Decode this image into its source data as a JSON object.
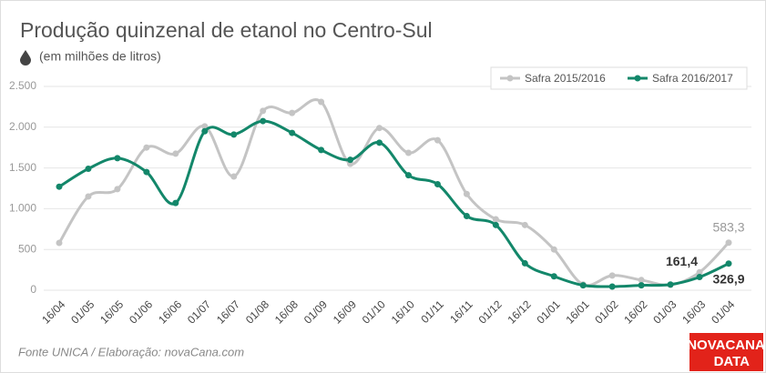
{
  "chart_data": {
    "type": "line",
    "title": "Produção quinzenal de etanol no Centro-Sul",
    "subtitle": "(em milhões de litros)",
    "source": "Fonte UNICA / Elaboração: novaCana.com",
    "logo": [
      "NOVACANA",
      "DATA"
    ],
    "categories": [
      "16/04",
      "01/05",
      "16/05",
      "01/06",
      "16/06",
      "01/07",
      "16/07",
      "01/08",
      "16/08",
      "01/09",
      "16/09",
      "01/10",
      "16/10",
      "01/11",
      "16/11",
      "01/12",
      "16/12",
      "01/01",
      "16/01",
      "01/02",
      "16/02",
      "01/03",
      "16/03",
      "01/04"
    ],
    "series": [
      {
        "name": "Safra 2015/2016",
        "color": "#c4c4c4",
        "values": [
          580,
          1150,
          1240,
          1750,
          1675,
          2010,
          1395,
          2200,
          2175,
          2310,
          1550,
          1990,
          1685,
          1840,
          1180,
          870,
          800,
          500,
          70,
          180,
          125,
          65,
          220,
          583.3
        ],
        "value_labels": [
          null,
          null,
          null,
          null,
          null,
          null,
          null,
          null,
          null,
          null,
          null,
          null,
          null,
          null,
          null,
          null,
          null,
          null,
          null,
          null,
          null,
          null,
          null,
          "583,3"
        ]
      },
      {
        "name": "Safra 2016/2017",
        "color": "#13876a",
        "values": [
          1270,
          1490,
          1620,
          1450,
          1070,
          1950,
          1910,
          2075,
          1930,
          1720,
          1600,
          1810,
          1410,
          1300,
          910,
          800,
          330,
          170,
          60,
          45,
          60,
          70,
          161.4,
          326.9
        ],
        "value_labels": [
          null,
          null,
          null,
          null,
          null,
          null,
          null,
          null,
          null,
          null,
          null,
          null,
          null,
          null,
          null,
          null,
          null,
          null,
          null,
          null,
          null,
          null,
          "161,4",
          "326,9"
        ]
      }
    ],
    "ylim": [
      0,
      2500
    ],
    "yticks": [
      0,
      500,
      {
        "value": 1000,
        "label": "1.000"
      },
      {
        "value": 1500,
        "label": "1.500"
      },
      {
        "value": 2000,
        "label": "2.000"
      },
      {
        "value": 2500,
        "label": "2.500"
      }
    ],
    "grid": true,
    "legend": "top-right"
  }
}
